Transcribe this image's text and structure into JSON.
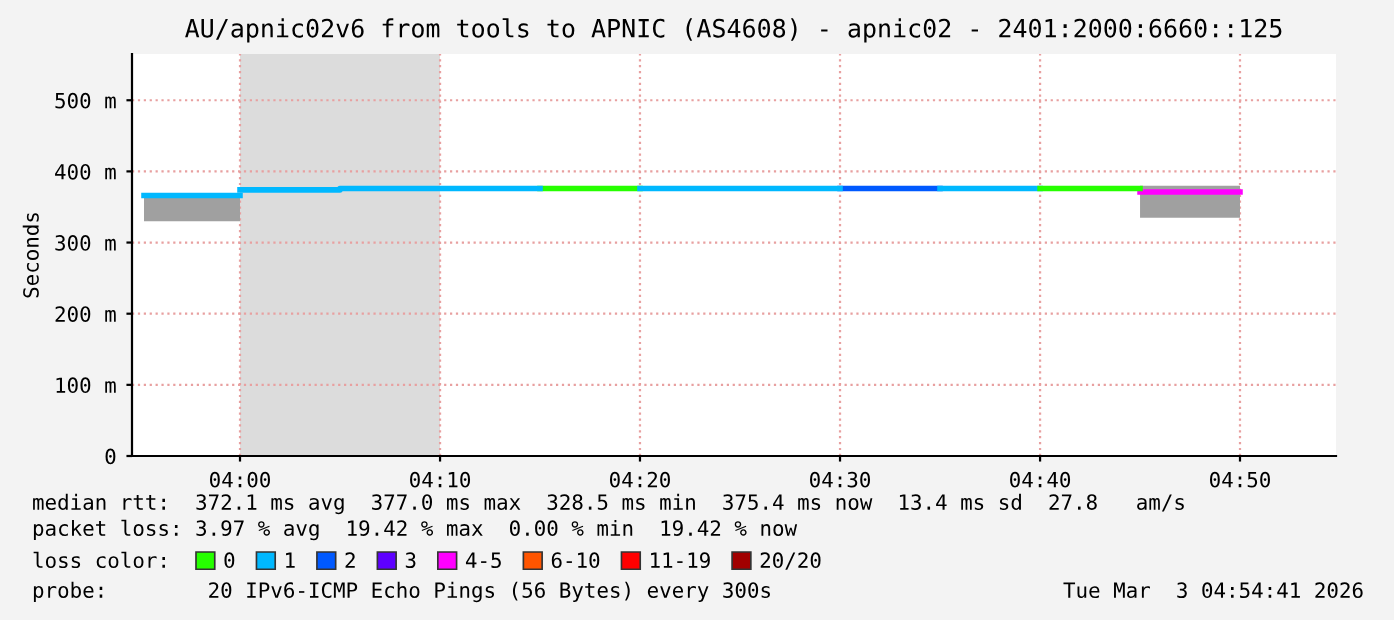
{
  "chart_data": {
    "type": "line",
    "title": "AU/apnic02v6 from tools to APNIC (AS4608) - apnic02 - 2401:2000:6660::125",
    "ylabel": "Seconds",
    "legend_title": "loss color:",
    "legend": "bottom",
    "grid": true,
    "xlim": [
      3.91,
      4.9133
    ],
    "ylim": [
      0,
      565
    ],
    "xticks": [
      {
        "value": 4.0,
        "label": "04:00"
      },
      {
        "value": 4.1667,
        "label": "04:10"
      },
      {
        "value": 4.3333,
        "label": "04:20"
      },
      {
        "value": 4.5,
        "label": "04:30"
      },
      {
        "value": 4.6667,
        "label": "04:40"
      },
      {
        "value": 4.8333,
        "label": "04:50"
      }
    ],
    "yticks": [
      {
        "value": 0,
        "label": "0"
      },
      {
        "value": 100,
        "label": "100 m"
      },
      {
        "value": 200,
        "label": "200 m"
      },
      {
        "value": 300,
        "label": "300 m"
      },
      {
        "value": 400,
        "label": "400 m"
      },
      {
        "value": 500,
        "label": "500 m"
      }
    ],
    "bands": [
      {
        "axis": "x",
        "from": 4.0,
        "to": 4.1667,
        "color": "#dcdcdc"
      }
    ],
    "series": [
      {
        "name": "0",
        "color": "#26ff00",
        "x": [
          4.25,
          4.3333
        ],
        "values": [
          376,
          376
        ]
      },
      {
        "name": "1",
        "color": "#00b8ff",
        "x": [
          3.92,
          4.0
        ],
        "values": [
          366,
          366
        ],
        "lower": [
          330,
          330
        ],
        "upper": [
          366,
          366
        ]
      },
      {
        "name": "2",
        "color": "#0059ff",
        "x": [
          4.5,
          4.5833
        ],
        "values": [
          376,
          376
        ]
      },
      {
        "name": "3",
        "color": "#5e00ff"
      },
      {
        "name": "4-5",
        "color": "#ff00ff",
        "x": [
          4.75,
          4.8333
        ],
        "values": [
          371,
          371
        ],
        "lower": [
          335,
          335
        ],
        "upper": [
          380,
          380
        ]
      },
      {
        "name": "6-10",
        "color": "#ff5500"
      },
      {
        "name": "11-19",
        "color": "#ff0000"
      },
      {
        "name": "20/20",
        "color": "#a10000"
      },
      {
        "color": "#00b8ff",
        "x": [
          4.0,
          4.0833,
          4.0833,
          4.25
        ],
        "values": [
          374,
          374,
          376,
          376
        ]
      },
      {
        "color": "#00b8ff",
        "x": [
          4.3333,
          4.5
        ],
        "values": [
          376,
          376
        ]
      },
      {
        "color": "#00b8ff",
        "x": [
          4.5833,
          4.6667
        ],
        "values": [
          376,
          376
        ]
      },
      {
        "color": "#26ff00",
        "x": [
          4.6667,
          4.75
        ],
        "values": [
          376,
          376
        ]
      }
    ],
    "annotations": [
      "median rtt:  372.1 ms avg  377.0 ms max  328.5 ms min  375.4 ms now  13.4 ms sd  27.8   am/s",
      "packet loss: 3.97 % avg  19.42 % max  0.00 % min  19.42 % now",
      "probe:        20 IPv6-ICMP Echo Pings (56 Bytes) every 300s",
      "Tue Mar  3 04:54:41 2026"
    ]
  }
}
